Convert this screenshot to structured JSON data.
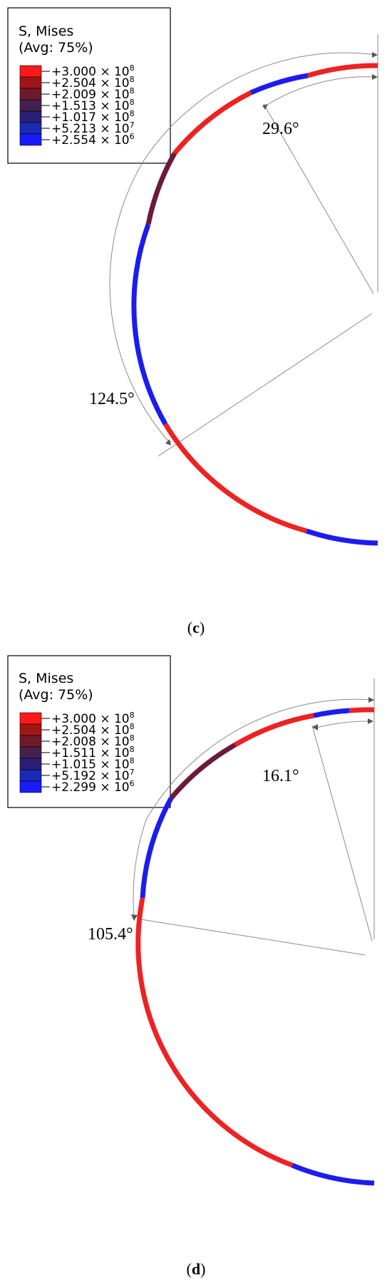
{
  "panels": [
    {
      "id": "c",
      "caption_open": "(",
      "caption_letter": "c",
      "caption_close": ")",
      "legend": {
        "title_line1": "S, Mises",
        "title_line2": "(Avg: 75%)",
        "entries": [
          {
            "mantissa": "+3.000",
            "exponent": "8"
          },
          {
            "mantissa": "+2.504",
            "exponent": "8"
          },
          {
            "mantissa": "+2.009",
            "exponent": "8"
          },
          {
            "mantissa": "+1.513",
            "exponent": "8"
          },
          {
            "mantissa": "+1.017",
            "exponent": "8"
          },
          {
            "mantissa": "+5.213",
            "exponent": "7"
          },
          {
            "mantissa": "+2.554",
            "exponent": "6"
          }
        ],
        "times_sign": "×",
        "base": "10"
      },
      "angles": [
        {
          "label": "29.6°",
          "value_deg": 29.6
        },
        {
          "label": "124.5°",
          "value_deg": 124.5
        }
      ]
    },
    {
      "id": "d",
      "caption_open": "(",
      "caption_letter": "d",
      "caption_close": ")",
      "legend": {
        "title_line1": "S, Mises",
        "title_line2": "(Avg: 75%)",
        "entries": [
          {
            "mantissa": "+3.000",
            "exponent": "8"
          },
          {
            "mantissa": "+2.504",
            "exponent": "8"
          },
          {
            "mantissa": "+2.008",
            "exponent": "8"
          },
          {
            "mantissa": "+1.511",
            "exponent": "8"
          },
          {
            "mantissa": "+1.015",
            "exponent": "8"
          },
          {
            "mantissa": "+5.192",
            "exponent": "7"
          },
          {
            "mantissa": "+2.299",
            "exponent": "6"
          }
        ],
        "times_sign": "×",
        "base": "10"
      },
      "angles": [
        {
          "label": "16.1°",
          "value_deg": 16.1
        },
        {
          "label": "105.4°",
          "value_deg": 105.4
        }
      ]
    }
  ],
  "colors": {
    "swatches": [
      "#ff1a1a",
      "#a01616",
      "#6e1a2a",
      "#46204e",
      "#2a1e78",
      "#1a2ab4",
      "#1a1aff"
    ],
    "high_stress": "#ee2222",
    "low_stress": "#1c1cf0",
    "mid_stress": "#6a1a3a",
    "dimension_line": "#8a8a8a"
  }
}
